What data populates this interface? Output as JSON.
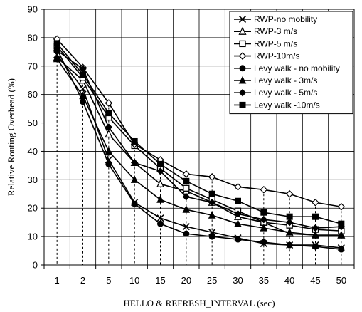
{
  "chart_data": {
    "type": "line",
    "xlabel": "HELLO & REFRESH_INTERVAL (sec)",
    "ylabel": "Relative Routing Overhead (%)",
    "categories": [
      "1",
      "2",
      "5",
      "10",
      "15",
      "20",
      "25",
      "30",
      "35",
      "40",
      "45",
      "50"
    ],
    "ylim": [
      0,
      90
    ],
    "yticks": [
      "0",
      "10",
      "20",
      "30",
      "40",
      "50",
      "60",
      "70",
      "80",
      "90"
    ],
    "grid": true,
    "legend_position": "top-right",
    "drop_lines": true,
    "series": [
      {
        "name": "RWP-no mobility",
        "marker": "x",
        "values": [
          74,
          62,
          37,
          22,
          16.5,
          13.5,
          11.5,
          9.5,
          7.5,
          7,
          7,
          6
        ]
      },
      {
        "name": "RWP-3 m/s",
        "marker": "triangle-open",
        "values": [
          73,
          65,
          46,
          36,
          28.5,
          26,
          22,
          17,
          15,
          11,
          10.5,
          10.5
        ]
      },
      {
        "name": "RWP-5 m/s",
        "marker": "square-open",
        "values": [
          77,
          66,
          52,
          42,
          34,
          27,
          23,
          19,
          15,
          14,
          12.5,
          12
        ]
      },
      {
        "name": "RWP-10m/s",
        "marker": "diamond-open",
        "values": [
          79.5,
          69.5,
          57,
          42.5,
          37,
          32,
          31,
          27.5,
          26.5,
          25,
          22,
          20.5
        ]
      },
      {
        "name": "Levy walk - no mobility",
        "marker": "circle",
        "values": [
          76,
          57.5,
          35.5,
          21.5,
          14.5,
          11,
          10,
          9,
          8,
          7,
          6.5,
          5.5
        ]
      },
      {
        "name": "Levy walk - 3m/s",
        "marker": "triangle",
        "values": [
          72.5,
          59.5,
          40,
          30,
          23,
          19.5,
          17.5,
          14.5,
          13,
          11.5,
          10.5,
          10.5
        ]
      },
      {
        "name": "Levy walk - 5m/s",
        "marker": "diamond",
        "values": [
          75.5,
          69,
          48.5,
          36,
          33,
          24,
          22,
          18,
          16,
          15,
          13,
          13.5
        ]
      },
      {
        "name": "Levy walk -10m/s",
        "marker": "square",
        "values": [
          78,
          67,
          53.5,
          43.5,
          35.5,
          29.5,
          25,
          22.5,
          18.5,
          17,
          17,
          14.5
        ]
      }
    ]
  }
}
